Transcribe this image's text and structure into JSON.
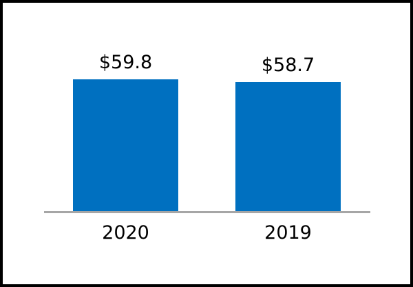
{
  "window": {
    "background": "#ffffff",
    "frame_border_color": "#000000"
  },
  "chart_data": {
    "type": "bar",
    "categories": [
      "2020",
      "2019"
    ],
    "values": [
      59.8,
      58.7
    ],
    "data_labels": [
      "$59.8",
      "$58.7"
    ],
    "title": "",
    "xlabel": "",
    "ylabel": "",
    "ylim": [
      0,
      63
    ],
    "grid": false,
    "legend": false,
    "y_axis_visible": false,
    "bar_color": "#0070C0",
    "axis_line_color": "#A6A6A6",
    "label_color": "#000000"
  }
}
